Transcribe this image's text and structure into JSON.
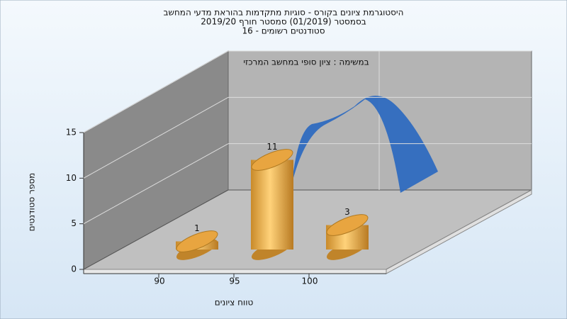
{
  "chart_data": {
    "type": "bar",
    "title": "היסטוגרמת ציונים בקורס - סוגיות מתקדמות בהוראת מדעי המחשב",
    "subtitle": [
      "בסמסטר  (01/2019)  סמסטר חורף 2019/20",
      "סטודנטים רשומים - 16"
    ],
    "annotation": "במשימה : ציון סופי במחשב המרכזי",
    "x_label": "טווח ציונים",
    "y_label": "מספר סטודנטים",
    "categories": [
      "90",
      "95",
      "100"
    ],
    "values": [
      1,
      11,
      3
    ],
    "color": "#e8a540",
    "ylim": [
      0,
      15
    ],
    "yticks": [
      0,
      5,
      10,
      15
    ],
    "grid": true
  }
}
